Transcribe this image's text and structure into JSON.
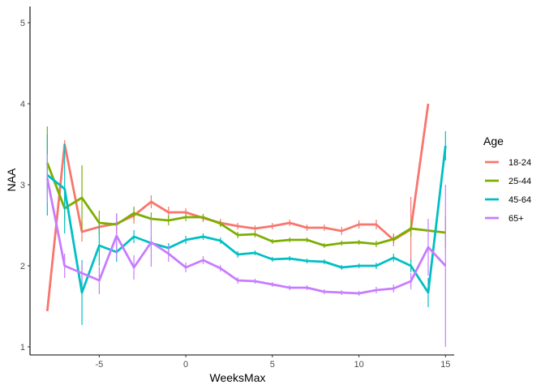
{
  "chart_data": {
    "type": "line",
    "xlabel": "WeeksMax",
    "ylabel": "NAA",
    "xlim": [
      -9,
      15.5
    ],
    "ylim": [
      0.9,
      5.2
    ],
    "xticks": [
      -5,
      0,
      5,
      10,
      15
    ],
    "yticks": [
      1,
      2,
      3,
      4,
      5
    ],
    "grid": false,
    "legend": {
      "title": "Age",
      "position": "right"
    },
    "series": [
      {
        "name": "18-24",
        "color": "#F8766D",
        "x": [
          -8,
          -7,
          -6,
          -5,
          -4,
          -3,
          -2,
          -1,
          0,
          1,
          2,
          3,
          4,
          5,
          6,
          7,
          8,
          9,
          10,
          11,
          12,
          13,
          14
        ],
        "y": [
          1.44,
          3.5,
          2.42,
          2.48,
          2.52,
          2.62,
          2.79,
          2.66,
          2.66,
          2.59,
          2.53,
          2.49,
          2.46,
          2.49,
          2.53,
          2.47,
          2.47,
          2.43,
          2.51,
          2.51,
          2.32,
          2.45,
          4.0
        ],
        "err": [
          0,
          0.05,
          0.12,
          0.08,
          0.12,
          0.1,
          0.08,
          0.07,
          0.05,
          0.05,
          0.05,
          0.04,
          0.04,
          0.04,
          0.04,
          0.04,
          0.04,
          0.05,
          0.05,
          0.06,
          0.08,
          0.4,
          0
        ]
      },
      {
        "name": "25-44",
        "color": "#7CAE00",
        "x": [
          -8,
          -7,
          -6,
          -5,
          -4,
          -3,
          -2,
          -1,
          0,
          1,
          2,
          3,
          4,
          5,
          6,
          7,
          8,
          9,
          10,
          11,
          12,
          13,
          15
        ],
        "y": [
          3.27,
          2.71,
          2.84,
          2.53,
          2.51,
          2.65,
          2.58,
          2.56,
          2.6,
          2.6,
          2.52,
          2.38,
          2.39,
          2.3,
          2.32,
          2.32,
          2.25,
          2.28,
          2.29,
          2.27,
          2.33,
          2.46,
          2.41
        ],
        "err": [
          0.45,
          0.15,
          0.4,
          0.15,
          0.1,
          0.08,
          0.08,
          0.06,
          0.05,
          0.04,
          0.04,
          0.04,
          0.04,
          0.03,
          0.03,
          0.03,
          0.03,
          0.03,
          0.03,
          0.04,
          0.05,
          0.1,
          0.2
        ]
      },
      {
        "name": "45-64",
        "color": "#00BFC4",
        "x": [
          -8,
          -7,
          -6,
          -5,
          -4,
          -3,
          -2,
          -1,
          0,
          1,
          2,
          3,
          4,
          5,
          6,
          7,
          8,
          9,
          10,
          11,
          12,
          13,
          14,
          15
        ],
        "y": [
          3.12,
          2.95,
          1.67,
          2.25,
          2.17,
          2.36,
          2.28,
          2.22,
          2.32,
          2.36,
          2.31,
          2.14,
          2.16,
          2.08,
          2.09,
          2.06,
          2.05,
          1.98,
          2.0,
          2.0,
          2.1,
          2.0,
          1.67,
          3.48
        ],
        "err": [
          0.5,
          0.55,
          0.4,
          0.25,
          0.12,
          0.08,
          0.08,
          0.06,
          0.05,
          0.04,
          0.04,
          0.04,
          0.03,
          0.03,
          0.03,
          0.03,
          0.03,
          0.03,
          0.03,
          0.04,
          0.05,
          0.08,
          0.18,
          0.18
        ]
      },
      {
        "name": "65+",
        "color": "#C77CFF",
        "x": [
          -8,
          -7,
          -6,
          -5,
          -4,
          -3,
          -2,
          -1,
          0,
          1,
          2,
          3,
          4,
          5,
          6,
          7,
          8,
          9,
          10,
          11,
          12,
          13,
          14,
          15
        ],
        "y": [
          3.08,
          2.0,
          1.91,
          1.82,
          2.37,
          1.98,
          2.29,
          2.15,
          1.98,
          2.07,
          1.97,
          1.82,
          1.81,
          1.77,
          1.73,
          1.73,
          1.68,
          1.67,
          1.66,
          1.7,
          1.72,
          1.81,
          2.23,
          2.0
        ],
        "err": [
          0.3,
          0.15,
          0.12,
          0.17,
          0.28,
          0.15,
          0.3,
          0.1,
          0.06,
          0.05,
          0.04,
          0.04,
          0.03,
          0.03,
          0.03,
          0.03,
          0.03,
          0.03,
          0.03,
          0.04,
          0.05,
          0.1,
          0.35,
          1.0
        ]
      }
    ]
  }
}
